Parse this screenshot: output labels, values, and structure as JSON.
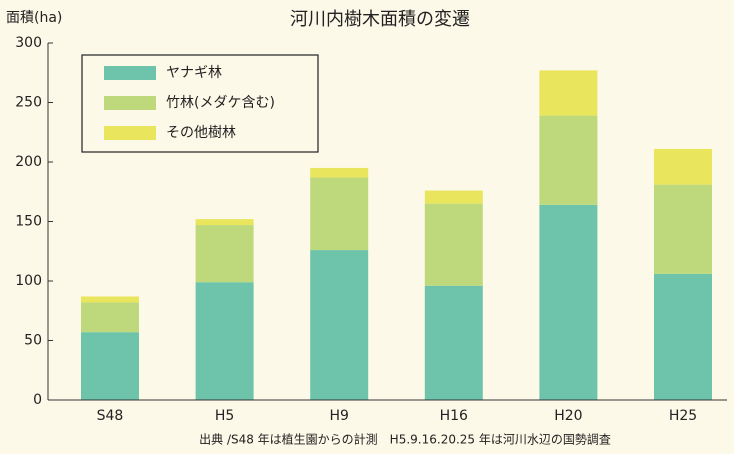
{
  "chart_data": {
    "type": "stacked_bar",
    "title": "河川内樹木面積の変遷",
    "y_label": "面積(ha)",
    "note": "出典 /S48 年は植生園からの計測　H5.9.16.20.25 年は河川水辺の国勢調査",
    "categories": [
      "S48",
      "H5",
      "H9",
      "H16",
      "H20",
      "H25"
    ],
    "series": [
      {
        "name": "ヤナギ林",
        "color": "#6dc4aa",
        "values": [
          57,
          99,
          126,
          96,
          164,
          106
        ]
      },
      {
        "name": "竹林(メダケ含む)",
        "color": "#bdd97c",
        "values": [
          25,
          48,
          61,
          69,
          75,
          75
        ]
      },
      {
        "name": "その他樹林",
        "color": "#e9e55c",
        "values": [
          5,
          5,
          8,
          11,
          38,
          30
        ]
      }
    ],
    "ylim": [
      0,
      300
    ],
    "yticks": [
      0,
      50,
      100,
      150,
      200,
      250,
      300
    ],
    "legend": "upper left"
  }
}
